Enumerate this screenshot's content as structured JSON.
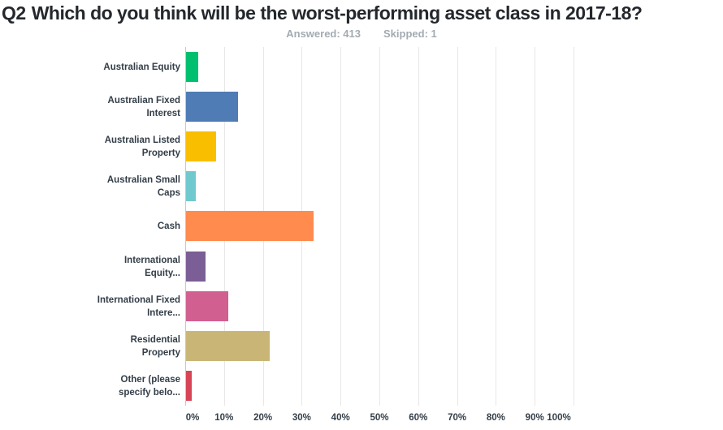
{
  "header": {
    "question_number": "Q2",
    "question_text": "Which do you think will be the worst-performing asset class in 2017-18?",
    "answered_label": "Answered: 413",
    "skipped_label": "Skipped: 1"
  },
  "chart_data": {
    "type": "bar",
    "orientation": "horizontal",
    "title": "Q2 Which do you think will be the worst-performing asset class in 2017-18?",
    "categories": [
      "Australian Equity",
      "Australian Fixed Interest",
      "Australian Listed Property",
      "Australian Small Caps",
      "Cash",
      "International Equity...",
      "International Fixed Intere...",
      "Residential Property",
      "Other (please specify belo..."
    ],
    "values": [
      3.1,
      13.3,
      7.7,
      2.4,
      32.9,
      5.1,
      10.9,
      21.6,
      1.4
    ],
    "unit": "%",
    "colors": [
      "#00BF6F",
      "#4F7CB4",
      "#F9BE00",
      "#6FC9CE",
      "#FF8B4F",
      "#7B5E95",
      "#D15F90",
      "#C9B677",
      "#D64456"
    ],
    "xlim": [
      0,
      100
    ],
    "x_ticks": [
      "0%",
      "10%",
      "20%",
      "30%",
      "40%",
      "50%",
      "60%",
      "70%",
      "80%",
      "90%",
      "100%"
    ],
    "grid": true,
    "legend": "none",
    "grid_color": "#E7E7E7",
    "axis_line_color": "#C6C8CA",
    "label_color": "#333E48"
  }
}
